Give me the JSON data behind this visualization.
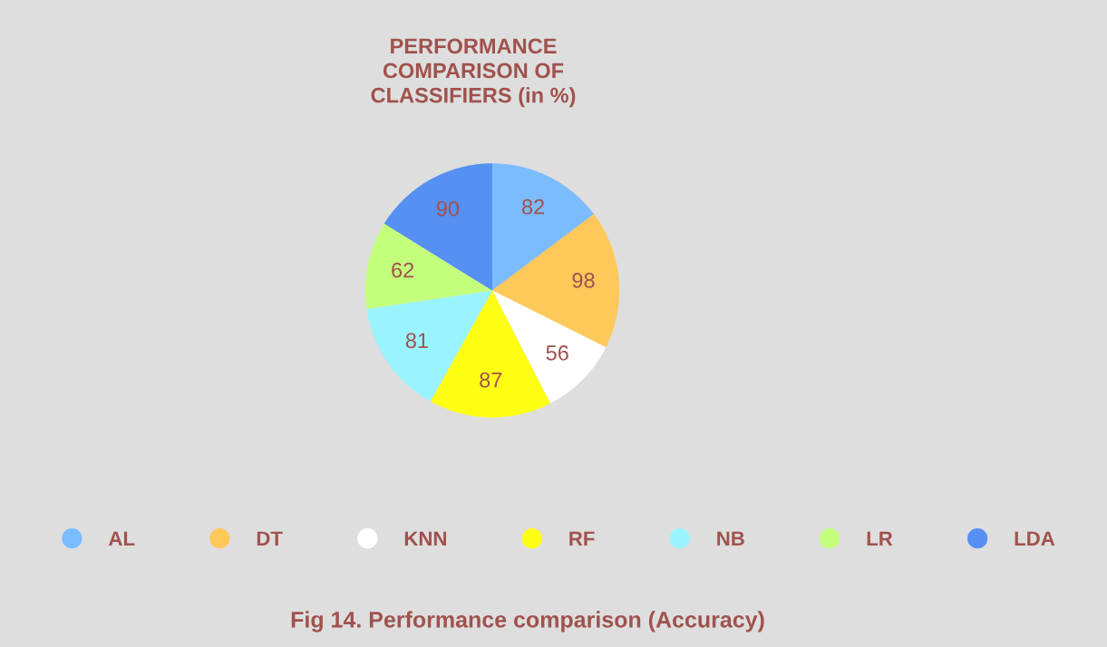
{
  "chart_data": {
    "type": "pie",
    "title": "PERFORMANCE\nCOMPARISON OF\nCLASSIFIERS (in %)",
    "categories": [
      "AL",
      "DT",
      "KNN",
      "RF",
      "NB",
      "LR",
      "LDA"
    ],
    "values": [
      82,
      98,
      56,
      87,
      81,
      62,
      90
    ],
    "colors": [
      "#7bbcff",
      "#ffc85a",
      "#ffffff",
      "#ffff14",
      "#9af4fd",
      "#c4ff7c",
      "#5590f2"
    ],
    "data_labels": true,
    "legend": "bottom",
    "annotations": [
      "Fig 14. Performance comparison (Accuracy)"
    ]
  }
}
